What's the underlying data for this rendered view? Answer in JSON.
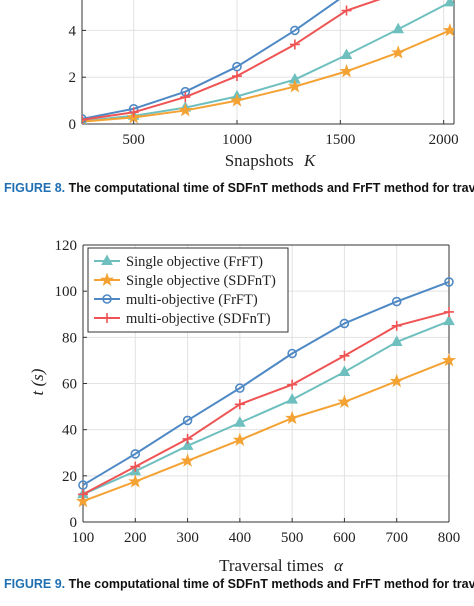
{
  "chart_data": [
    {
      "type": "line",
      "xlabel": "Snapshots",
      "xlabel_var": "K",
      "ylabel": "",
      "xticks": [
        "500",
        "1000",
        "1500",
        "2000"
      ],
      "yticks": [
        "0",
        "2",
        "4"
      ],
      "xlim": [
        250,
        2050
      ],
      "ylim": [
        0,
        5.3
      ],
      "grid": true,
      "legend": "none",
      "x": [
        250,
        500,
        750,
        1000,
        1280,
        1530,
        1780,
        2030
      ],
      "series": [
        {
          "key": "s1",
          "color": "#6fbfbf",
          "marker": "triangle",
          "values": [
            0.13,
            0.35,
            0.7,
            1.18,
            1.9,
            2.95,
            4.05,
            5.2
          ]
        },
        {
          "key": "s2",
          "color": "#f4a233",
          "marker": "star",
          "values": [
            0.1,
            0.28,
            0.58,
            1.0,
            1.6,
            2.25,
            3.05,
            4.0
          ]
        },
        {
          "key": "s3",
          "color": "#4f89c5",
          "marker": "circle",
          "values": [
            0.22,
            0.65,
            1.38,
            2.45,
            4.0,
            5.55,
            null,
            null
          ]
        },
        {
          "key": "s4",
          "color": "#ef5353",
          "marker": "plus",
          "values": [
            0.18,
            0.5,
            1.15,
            2.05,
            3.4,
            4.85,
            5.6,
            null
          ]
        }
      ]
    },
    {
      "type": "line",
      "xlabel": "Traversal times",
      "xlabel_var": "α",
      "ylabel": "t (s)",
      "xticks": [
        "100",
        "200",
        "300",
        "400",
        "500",
        "600",
        "700",
        "800"
      ],
      "yticks": [
        "0",
        "20",
        "40",
        "60",
        "80",
        "100",
        "120"
      ],
      "xlim": [
        100,
        800
      ],
      "ylim": [
        0,
        120
      ],
      "grid": true,
      "legend": "top-left",
      "x": [
        100,
        200,
        300,
        400,
        500,
        600,
        700,
        800
      ],
      "series": [
        {
          "name": "Single objective (FrFT)",
          "color": "#6fbfbf",
          "marker": "triangle",
          "values": [
            12,
            22,
            33,
            43,
            53,
            65,
            78,
            87
          ]
        },
        {
          "name": "Single objective (SDFnT)",
          "color": "#f4a233",
          "marker": "star",
          "values": [
            9,
            17.5,
            26.5,
            35.5,
            45,
            52,
            61,
            70
          ]
        },
        {
          "name": "multi-objective (FrFT)",
          "color": "#4f89c5",
          "marker": "circle",
          "values": [
            16,
            29.5,
            44,
            58,
            73,
            86,
            95.5,
            104
          ]
        },
        {
          "name": "multi-objective (SDFnT)",
          "color": "#ef5353",
          "marker": "plus",
          "values": [
            12,
            24,
            36,
            51,
            59.5,
            72,
            85,
            91
          ]
        }
      ]
    }
  ],
  "captions": {
    "fig1_label": "FIGURE 8.",
    "fig1_text": "The computational time of SDFnT methods and FrFT method for traversing snapshot numbers.",
    "fig2_label": "FIGURE 9.",
    "fig2_text": "The computational time of SDFnT methods and FrFT method for traversing search times."
  }
}
